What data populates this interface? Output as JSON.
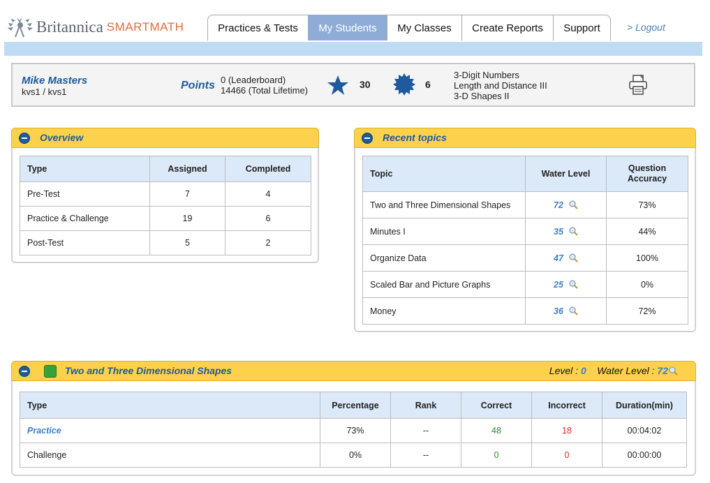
{
  "header": {
    "brand": "Britannica",
    "product": "SMARTMATH",
    "nav": [
      "Practices & Tests",
      "My Students",
      "My Classes",
      "Create Reports",
      "Support"
    ],
    "active_nav": "My Students",
    "logout": "> Logout"
  },
  "student": {
    "name": "Mike Masters",
    "login": "kvs1 / kvs1",
    "points_label": "Points",
    "points_leaderboard": "0 (Leaderboard)",
    "points_lifetime": "14466 (Total Lifetime)",
    "stars": "30",
    "badges": "6",
    "topics": [
      "3-Digit Numbers",
      "Length and Distance III",
      "3-D Shapes II"
    ]
  },
  "overview": {
    "title": "Overview",
    "headers": [
      "Type",
      "Assigned",
      "Completed"
    ],
    "rows": [
      [
        "Pre-Test",
        "7",
        "4"
      ],
      [
        "Practice & Challenge",
        "19",
        "6"
      ],
      [
        "Post-Test",
        "5",
        "2"
      ]
    ]
  },
  "recent_topics": {
    "title": "Recent topics",
    "headers": [
      "Topic",
      "Water Level",
      "Question Accuracy"
    ],
    "rows": [
      [
        "Two and Three Dimensional Shapes",
        "72",
        "73%"
      ],
      [
        "Minutes I",
        "35",
        "44%"
      ],
      [
        "Organize Data",
        "47",
        "100%"
      ],
      [
        "Scaled Bar and Picture Graphs",
        "25",
        "0%"
      ],
      [
        "Money",
        "36",
        "72%"
      ]
    ]
  },
  "topic_detail": {
    "title": "Two and Three Dimensional Shapes",
    "level_label": "Level :",
    "level_value": "0",
    "water_label": "Water Level :",
    "water_value": "72",
    "headers": [
      "Type",
      "Percentage",
      "Rank",
      "Correct",
      "Incorrect",
      "Duration(min)"
    ],
    "rows": [
      [
        "Practice",
        "73%",
        "--",
        "48",
        "18",
        "00:04:02"
      ],
      [
        "Challenge",
        "0%",
        "--",
        "0",
        "0",
        "00:00:00"
      ]
    ]
  },
  "colors": {
    "accent_blue": "#1e5a9c",
    "panel_yellow": "#fcd24c",
    "active_tab": "#8eacd6",
    "header_cell": "#dce9f8"
  }
}
